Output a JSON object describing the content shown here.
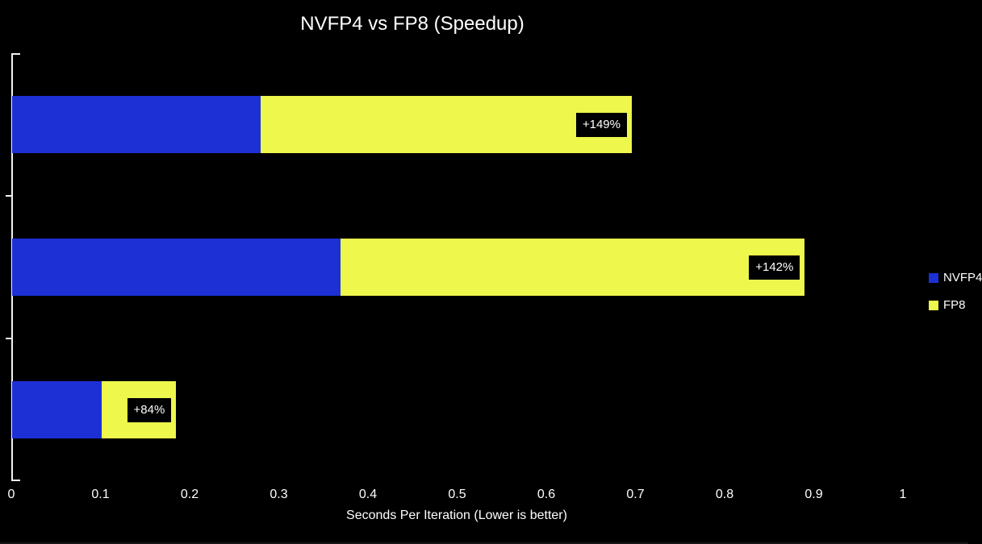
{
  "title": "NVFP4 vs FP8 (Speedup)",
  "colors": {
    "background": "#000000",
    "nvfp4_blue": "#1C30D6",
    "fp8_yellow": "#EDF74C",
    "axis": "#F2F2F2",
    "text": "#FFFFFF",
    "label_box_background": "#000000"
  },
  "chart_data": {
    "type": "bar",
    "orientation": "horizontal",
    "title": "NVFP4 vs FP8 (Speedup)",
    "categories": [
      "",
      "",
      ""
    ],
    "series": [
      {
        "name": "NVFP4",
        "color": "#1C30D6",
        "values": [
          0.279,
          0.368,
          0.1
        ]
      },
      {
        "name": "FP8",
        "color": "#EDF74C",
        "values": [
          0.695,
          0.889,
          0.184
        ]
      }
    ],
    "bar_labels": [
      "+149%",
      "+142%",
      "+84%"
    ],
    "bar_label_series": "FP8",
    "xlabel": "Seconds Per Iteration (Lower is better)",
    "ylabel": "",
    "xlim": [
      0,
      1.07
    ],
    "x_ticks": [
      0,
      0.1,
      0.2,
      0.3,
      0.4,
      0.5,
      0.6,
      0.7,
      0.8,
      0.9,
      1
    ],
    "x_tick_labels": [
      "0",
      "0.1",
      "0.2",
      "0.3",
      "0.4",
      "0.5",
      "0.6",
      "0.7",
      "0.8",
      "0.9",
      "1"
    ],
    "grid": false,
    "legend_position": "right",
    "style": "overlapped horizontal bars on black background; NVFP4 (blue) drawn over FP8 (yellow); black data-label boxes inside yellow bars"
  }
}
